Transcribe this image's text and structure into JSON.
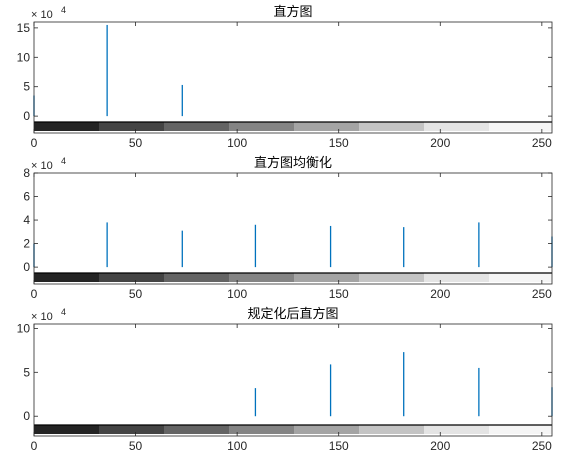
{
  "chart_data": [
    {
      "type": "bar",
      "title": "直方图",
      "exponent_label": "× 10",
      "exponent_power": "4",
      "xlim": [
        0,
        255
      ],
      "ylim": [
        -1,
        16
      ],
      "x_ticks": [
        0,
        50,
        100,
        150,
        200,
        250
      ],
      "y_ticks": [
        0,
        5,
        10,
        15
      ],
      "x_tick_labels": [
        "0",
        "50",
        "100",
        "150",
        "200",
        "250"
      ],
      "y_tick_labels": [
        "0",
        "5",
        "10",
        "15"
      ],
      "series": [
        {
          "color": "#0072BD",
          "x": [
            0,
            36,
            73
          ],
          "values": [
            3.5,
            15.5,
            5.3
          ]
        }
      ],
      "gray_bar": {
        "levels": [
          0,
          32,
          64,
          96,
          128,
          160,
          192,
          224
        ]
      }
    },
    {
      "type": "bar",
      "title": "直方图均衡化",
      "exponent_label": "× 10",
      "exponent_power": "4",
      "xlim": [
        0,
        255
      ],
      "ylim": [
        -0.5,
        8
      ],
      "x_ticks": [
        0,
        50,
        100,
        150,
        200,
        250
      ],
      "y_ticks": [
        0,
        2,
        4,
        6,
        8
      ],
      "x_tick_labels": [
        "0",
        "50",
        "100",
        "150",
        "200",
        "250"
      ],
      "y_tick_labels": [
        "0",
        "2",
        "4",
        "6",
        "8"
      ],
      "series": [
        {
          "color": "#0072BD",
          "x": [
            0,
            36,
            73,
            109,
            146,
            182,
            219,
            255
          ],
          "values": [
            2.0,
            3.8,
            3.1,
            3.6,
            3.5,
            3.4,
            3.8,
            2.6
          ]
        }
      ],
      "gray_bar": {
        "levels": [
          0,
          32,
          64,
          96,
          128,
          160,
          192,
          224
        ]
      }
    },
    {
      "type": "bar",
      "title": "规定化后直方图",
      "exponent_label": "× 10",
      "exponent_power": "4",
      "xlim": [
        0,
        255
      ],
      "ylim": [
        -1,
        10.5
      ],
      "x_ticks": [
        0,
        50,
        100,
        150,
        200,
        250
      ],
      "y_ticks": [
        0,
        5,
        10
      ],
      "x_tick_labels": [
        "0",
        "50",
        "100",
        "150",
        "200",
        "250"
      ],
      "y_tick_labels": [
        "0",
        "5",
        "10"
      ],
      "series": [
        {
          "color": "#0072BD",
          "x": [
            109,
            146,
            182,
            219,
            255
          ],
          "values": [
            3.2,
            5.9,
            7.3,
            5.5,
            3.3
          ]
        }
      ],
      "gray_bar": {
        "levels": [
          0,
          32,
          64,
          96,
          128,
          160,
          192,
          224
        ]
      }
    }
  ]
}
